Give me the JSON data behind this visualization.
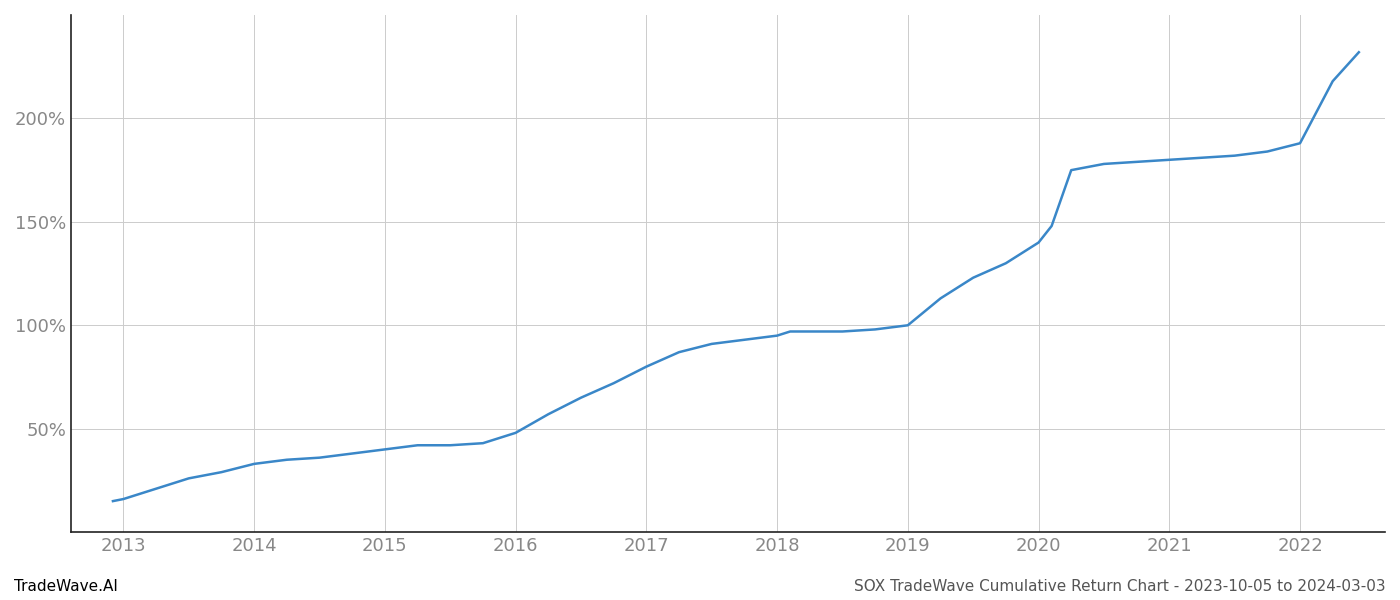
{
  "title": "",
  "footer_left": "TradeWave.AI",
  "footer_right": "SOX TradeWave Cumulative Return Chart - 2023-10-05 to 2024-03-03",
  "line_color": "#3a87c8",
  "background_color": "#ffffff",
  "grid_color": "#cccccc",
  "x_years": [
    2013,
    2014,
    2015,
    2016,
    2017,
    2018,
    2019,
    2020,
    2021,
    2022
  ],
  "data_points": {
    "x": [
      2012.92,
      2013.0,
      2013.25,
      2013.5,
      2013.75,
      2014.0,
      2014.25,
      2014.5,
      2014.75,
      2015.0,
      2015.25,
      2015.5,
      2015.75,
      2016.0,
      2016.25,
      2016.5,
      2016.75,
      2017.0,
      2017.25,
      2017.5,
      2017.75,
      2018.0,
      2018.1,
      2018.25,
      2018.5,
      2018.75,
      2019.0,
      2019.25,
      2019.5,
      2019.75,
      2020.0,
      2020.1,
      2020.25,
      2020.5,
      2020.75,
      2021.0,
      2021.25,
      2021.5,
      2021.75,
      2022.0,
      2022.25,
      2022.45
    ],
    "y": [
      15,
      16,
      21,
      26,
      29,
      33,
      35,
      36,
      38,
      40,
      42,
      42,
      43,
      48,
      57,
      65,
      72,
      80,
      87,
      91,
      93,
      95,
      97,
      97,
      97,
      98,
      100,
      113,
      123,
      130,
      140,
      148,
      175,
      178,
      179,
      180,
      181,
      182,
      184,
      188,
      218,
      232
    ]
  },
  "yticks": [
    50,
    100,
    150,
    200
  ],
  "ylim": [
    0,
    250
  ],
  "xlim": [
    2012.6,
    2022.65
  ],
  "axis_tick_color": "#888888",
  "left_spine_color": "#222222",
  "bottom_spine_color": "#222222",
  "line_width": 1.8,
  "footer_fontsize": 11,
  "tick_fontsize": 13
}
